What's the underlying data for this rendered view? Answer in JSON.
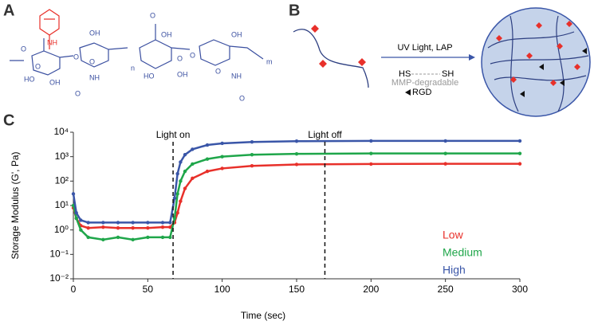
{
  "panels": {
    "a": {
      "label": "A",
      "atoms": [
        "NH",
        "O",
        "O",
        "O",
        "HO",
        "OH",
        "O",
        "OH",
        "NH",
        "O",
        "n",
        "O",
        "OH",
        "O",
        "HO",
        "O",
        "OH",
        "OH",
        "O",
        "NH",
        "O",
        "m"
      ]
    },
    "b": {
      "label": "B",
      "arrow_text": "UV Light, LAP",
      "thiol_left": "HS",
      "thiol_right": "SH",
      "crosslinker": "MMP-degradable",
      "peptide": "RGD"
    },
    "c": {
      "label": "C"
    }
  },
  "chart_data": {
    "type": "line",
    "log_y": true,
    "xlabel": "Time (sec)",
    "ylabel": "Storage Modulus (G', Pa)",
    "xlim": [
      0,
      300
    ],
    "xticks": [
      0,
      50,
      100,
      150,
      200,
      250,
      300
    ],
    "ylim": [
      0.01,
      10000
    ],
    "yticks": [
      {
        "value": 0.01,
        "label": "10⁻²"
      },
      {
        "value": 0.1,
        "label": "10⁻¹"
      },
      {
        "value": 1,
        "label": "10⁰"
      },
      {
        "value": 10,
        "label": "10¹"
      },
      {
        "value": 100,
        "label": "10²"
      },
      {
        "value": 1000,
        "label": "10³"
      },
      {
        "value": 10000,
        "label": "10⁴"
      }
    ],
    "annotations": [
      {
        "text": "Light on",
        "x": 67
      },
      {
        "text": "Light off",
        "x": 169
      }
    ],
    "x": [
      0,
      2,
      5,
      10,
      20,
      30,
      40,
      50,
      60,
      65,
      68,
      70,
      72,
      75,
      80,
      90,
      100,
      120,
      150,
      200,
      250,
      300
    ],
    "series": [
      {
        "name": "Low",
        "color": "#e8302a",
        "values": [
          8,
          3,
          1.5,
          1.2,
          1.3,
          1.2,
          1.2,
          1.2,
          1.3,
          1.3,
          2,
          5,
          15,
          50,
          130,
          250,
          330,
          420,
          480,
          500,
          510,
          510
        ]
      },
      {
        "name": "Medium",
        "color": "#1fa64a",
        "values": [
          10,
          3,
          1,
          0.5,
          0.4,
          0.5,
          0.4,
          0.5,
          0.5,
          0.5,
          3,
          30,
          100,
          250,
          500,
          800,
          1000,
          1200,
          1300,
          1350,
          1350,
          1350
        ]
      },
      {
        "name": "High",
        "color": "#3a56a8",
        "values": [
          30,
          5,
          2.5,
          2,
          2,
          2,
          2,
          2,
          2,
          2,
          20,
          200,
          600,
          1200,
          2000,
          3000,
          3500,
          4000,
          4300,
          4400,
          4400,
          4400
        ]
      }
    ]
  }
}
